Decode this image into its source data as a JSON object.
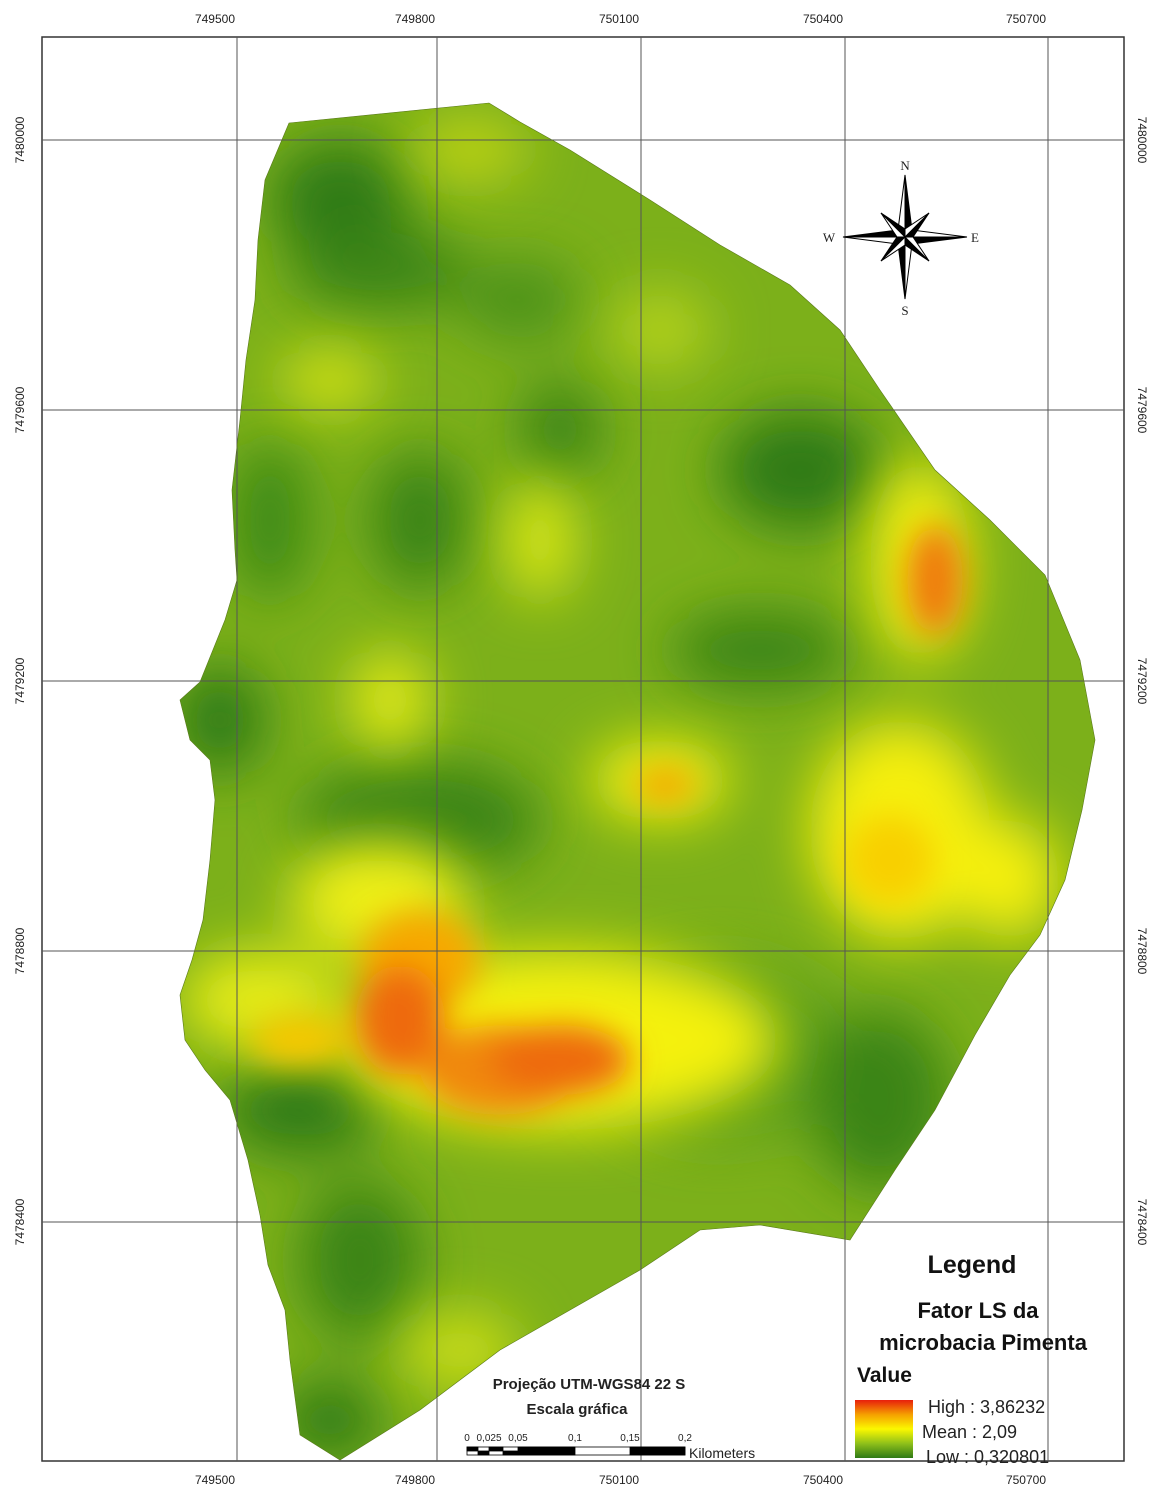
{
  "map": {
    "colors": {
      "high": "#e81f0c",
      "mid_high": "#f5a000",
      "mean": "#fbf800",
      "mid_low": "#8fc01a",
      "low": "#2f7a16",
      "grid": "#555555",
      "frame": "#333333"
    },
    "grid_labels": {
      "x": [
        "749500",
        "749800",
        "750100",
        "750400",
        "750700"
      ],
      "y": [
        "7480000",
        "7479600",
        "7479200",
        "7478800",
        "7478400"
      ]
    },
    "compass": {
      "n": "N",
      "s": "S",
      "e": "E",
      "w": "W",
      "icon": "compass-rose-icon"
    },
    "legend": {
      "title": "Legend",
      "layer_line1": "Fator LS da",
      "layer_line2": "microbacia Pimenta",
      "value_heading": "Value",
      "high_label": "High : 3,86232",
      "mean_label": "Mean : 2,09",
      "low_label": "Low : 0,320801"
    },
    "projection_text": "Projeção UTM-WGS84 22 S",
    "scale_title": "Escala gráfica",
    "scale_ticks": [
      "0",
      "0,025",
      "0,05",
      "0,1",
      "0,15",
      "0,2"
    ],
    "scale_unit": "Kilometers"
  }
}
